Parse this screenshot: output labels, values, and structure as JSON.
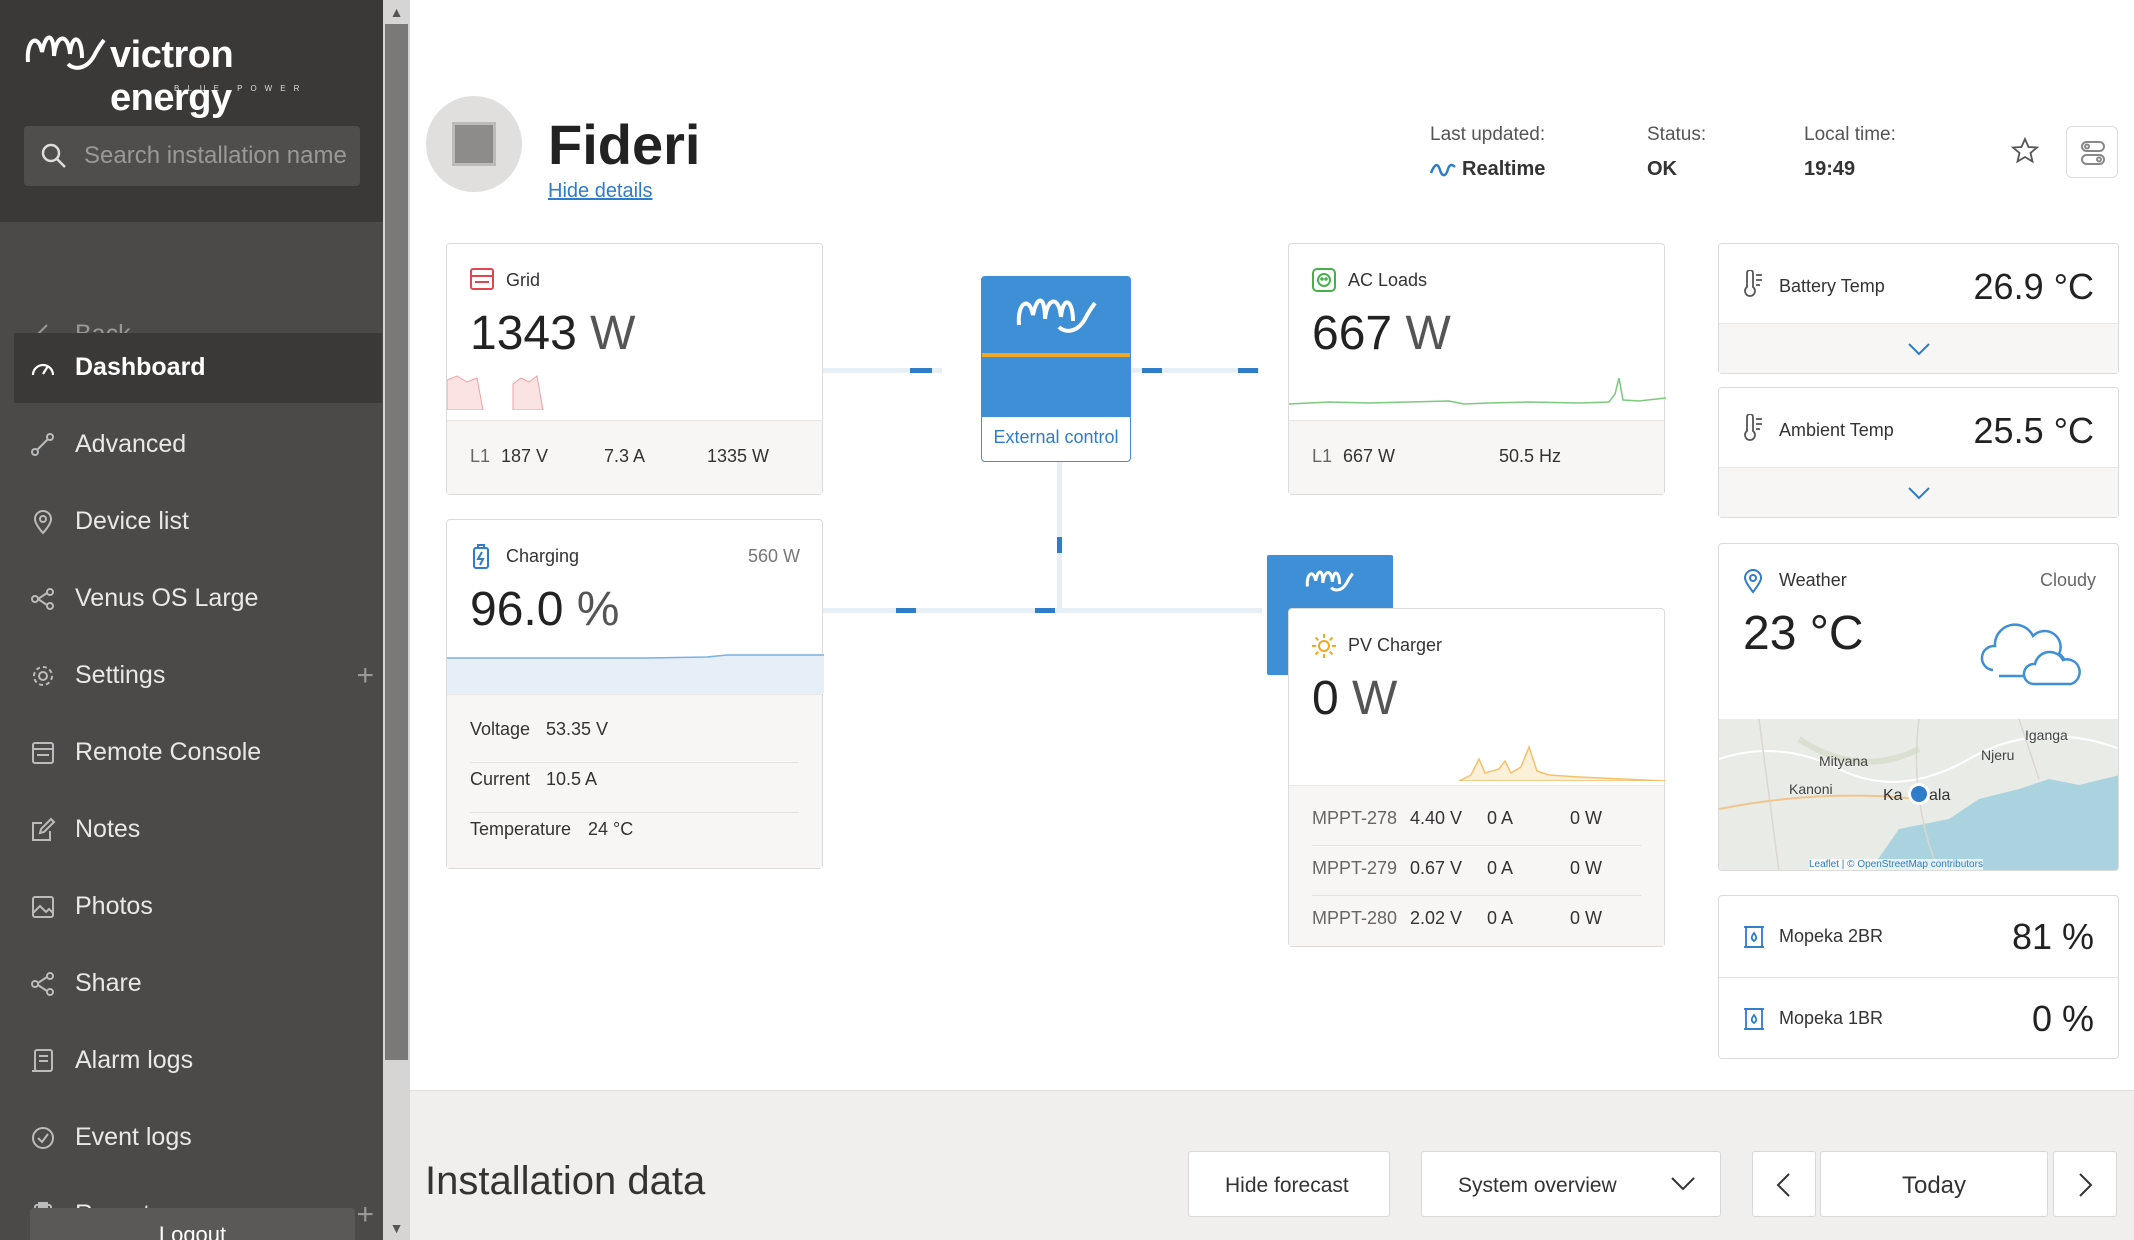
{
  "brand": {
    "name": "victron energy",
    "tagline": "BLUE POWER"
  },
  "search": {
    "placeholder": "Search installation name"
  },
  "sidebar": {
    "items": [
      {
        "label": "Back"
      },
      {
        "label": "Dashboard"
      },
      {
        "label": "Advanced"
      },
      {
        "label": "Device list"
      },
      {
        "label": "Venus OS Large"
      },
      {
        "label": "Settings"
      },
      {
        "label": "Remote Console"
      },
      {
        "label": "Notes"
      },
      {
        "label": "Photos"
      },
      {
        "label": "Share"
      },
      {
        "label": "Alarm logs"
      },
      {
        "label": "Event logs"
      },
      {
        "label": "Reports"
      }
    ],
    "logout_label": "Logout"
  },
  "header": {
    "title": "Fideri",
    "hide_details": "Hide details",
    "last_updated_label": "Last updated:",
    "last_updated_value": "Realtime",
    "status_label": "Status:",
    "status_value": "OK",
    "local_time_label": "Local time:",
    "local_time_value": "19:49"
  },
  "grid": {
    "title": "Grid",
    "value": "1343",
    "unit": "W",
    "phase": "L1",
    "voltage": "187 V",
    "current": "7.3 A",
    "power": "1335 W"
  },
  "inverter": {
    "label": "External control"
  },
  "ac_loads": {
    "title": "AC Loads",
    "value": "667",
    "unit": "W",
    "phase": "L1",
    "power": "667 W",
    "frequency": "50.5 Hz"
  },
  "battery": {
    "title": "Charging",
    "power": "560 W",
    "value": "96.0",
    "unit": "%",
    "voltage_label": "Voltage",
    "voltage": "53.35 V",
    "current_label": "Current",
    "current": "10.5 A",
    "temperature_label": "Temperature",
    "temperature": "24 °C"
  },
  "pv": {
    "title": "PV Charger",
    "value": "0",
    "unit": "W",
    "rows": [
      {
        "name": "MPPT-278",
        "voltage": "4.40 V",
        "current": "0 A",
        "power": "0 W"
      },
      {
        "name": "MPPT-279",
        "voltage": "0.67 V",
        "current": "0 A",
        "power": "0 W"
      },
      {
        "name": "MPPT-280",
        "voltage": "2.02 V",
        "current": "0 A",
        "power": "0 W"
      }
    ]
  },
  "battery_temp": {
    "label": "Battery Temp",
    "value": "26.9 °C"
  },
  "ambient_temp": {
    "label": "Ambient Temp",
    "value": "25.5 °C"
  },
  "weather": {
    "label": "Weather",
    "condition": "Cloudy",
    "temperature": "23 °C",
    "map_places": [
      "Iganga",
      "Mityana",
      "Njeru",
      "Kanoni",
      "Ka",
      "ala"
    ],
    "attribution": "Leaflet | © OpenStreetMap contributors"
  },
  "tanks": [
    {
      "label": "Mopeka 2BR",
      "value": "81 %"
    },
    {
      "label": "Mopeka 1BR",
      "value": "0 %"
    }
  ],
  "bottom": {
    "title": "Installation data",
    "hide_forecast": "Hide forecast",
    "view_select": "System overview",
    "date": "Today"
  },
  "colors": {
    "sidebar_bg": "#4b4a48",
    "accent_blue": "#3f8fd6",
    "grid_red": "#e0464f",
    "loads_green": "#48b04a",
    "pv_orange": "#f0a722"
  }
}
